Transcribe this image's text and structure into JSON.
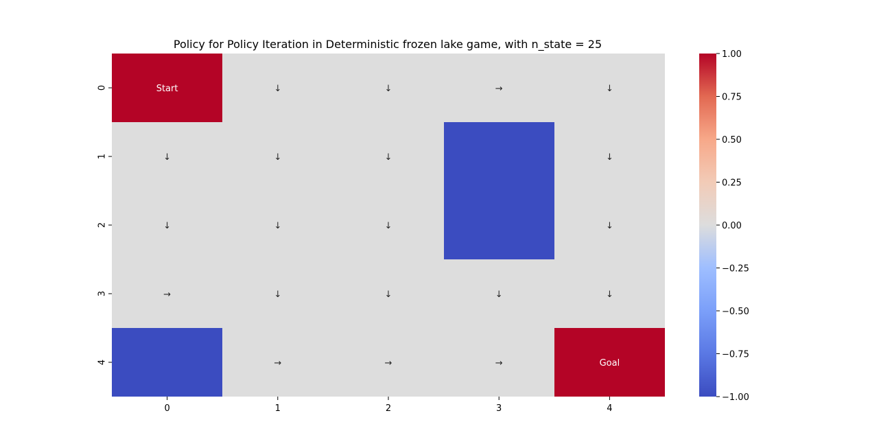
{
  "chart_data": {
    "type": "heatmap",
    "title": "Policy for Policy Iteration in Deterministic frozen lake game, with n_state = 25",
    "xlabel": "",
    "ylabel": "",
    "x_ticks": [
      "0",
      "1",
      "2",
      "3",
      "4"
    ],
    "y_ticks": [
      "0",
      "1",
      "2",
      "3",
      "4"
    ],
    "values": [
      [
        1,
        0,
        0,
        0,
        0
      ],
      [
        0,
        0,
        0,
        -1,
        0
      ],
      [
        0,
        0,
        0,
        -1,
        0
      ],
      [
        0,
        0,
        0,
        0,
        0
      ],
      [
        -1,
        0,
        0,
        0,
        1
      ]
    ],
    "annotations": [
      [
        "Start",
        "↓",
        "↓",
        "→",
        "↓"
      ],
      [
        "↓",
        "↓",
        "↓",
        "",
        "↓"
      ],
      [
        "↓",
        "↓",
        "↓",
        "",
        "↓"
      ],
      [
        "→",
        "↓",
        "↓",
        "↓",
        "↓"
      ],
      [
        "",
        "→",
        "→",
        "→",
        "Goal"
      ]
    ],
    "colormap": "coolwarm",
    "vmin": -1,
    "vmax": 1,
    "colorbar_ticks": [
      "1.00",
      "0.75",
      "0.50",
      "0.25",
      "0.00",
      "−0.25",
      "−0.50",
      "−0.75",
      "−1.00"
    ],
    "colors": {
      "high": "#b40426",
      "mid": "#dddddd",
      "low": "#3b4cc0"
    }
  }
}
